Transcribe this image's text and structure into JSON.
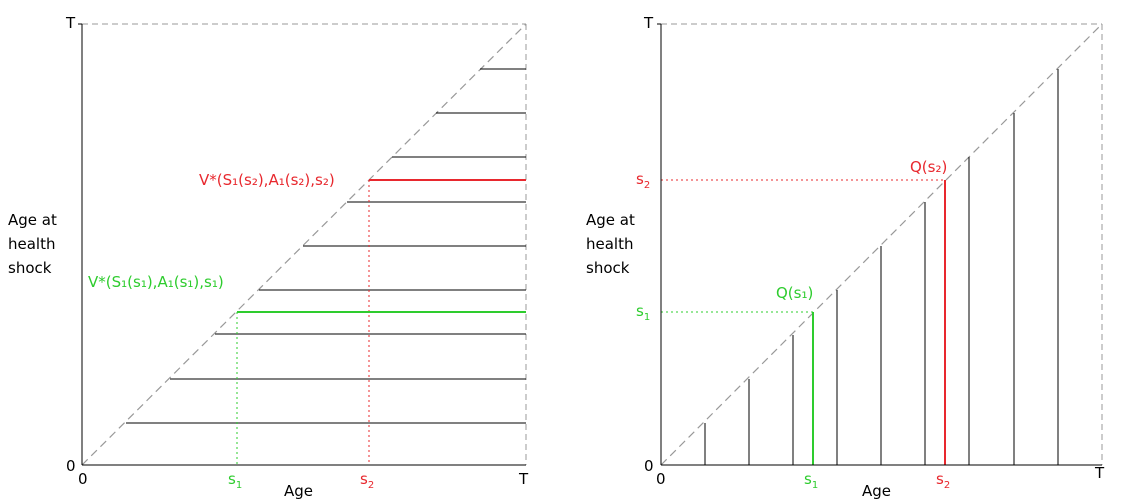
{
  "colors": {
    "red": "#e8282e",
    "green": "#2ecc2e",
    "axis": "#000000",
    "guide": "#999999"
  },
  "left_panel": {
    "y_top": "T",
    "origin_y": "0",
    "origin_x": "0",
    "x_end": "T",
    "s1": "s",
    "s1_sub": "1",
    "s2": "s",
    "s2_sub": "2",
    "xlabel": "Age",
    "ylabel_line1": "Age at",
    "ylabel_line2": "health",
    "ylabel_line3": "shock",
    "red_label": "V*(S₁(s₂),A₁(s₂),s₂)",
    "green_label": "V*(S₁(s₁),A₁(s₁),s₁)"
  },
  "right_panel": {
    "y_top": "T",
    "origin_y": "0",
    "origin_x": "0",
    "x_end": "T",
    "s1_x": "s",
    "s1_x_sub": "1",
    "s2_x": "s",
    "s2_x_sub": "2",
    "s1_y": "s",
    "s1_y_sub": "1",
    "s2_y": "s",
    "s2_y_sub": "2",
    "xlabel": "Age",
    "ylabel_line1": "Age at",
    "ylabel_line2": "health",
    "ylabel_line3": "shock",
    "q1_label": "Q(s₁)",
    "q2_label": "Q(s₂)"
  }
}
